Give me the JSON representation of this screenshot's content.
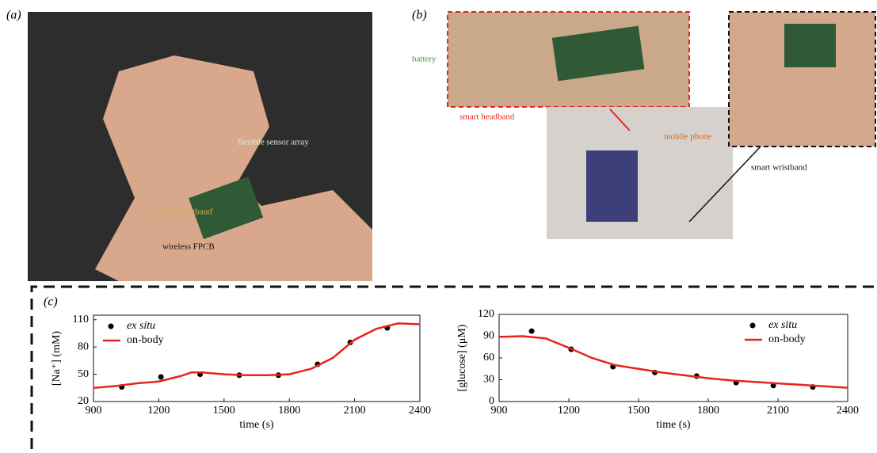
{
  "panels": {
    "a": {
      "label": "(a)",
      "annotations": [
        "flexible sensor array",
        "'smart wristband'",
        "wireless FPCB"
      ]
    },
    "b": {
      "label": "(b)",
      "annotations": [
        "battery",
        "smart headband",
        "mobile phone",
        "smart wristband"
      ]
    },
    "c": {
      "label": "(c)"
    }
  },
  "chart_data": [
    {
      "type": "line",
      "xlabel": "time (s)",
      "ylabel": "[Na⁺] (mM)",
      "xlim": [
        900,
        2400
      ],
      "xticks": [
        900,
        1200,
        1500,
        1800,
        2100,
        2400
      ],
      "ylim": [
        20,
        115
      ],
      "yticks": [
        20,
        50,
        80,
        110
      ],
      "legend": "upper left",
      "series": [
        {
          "name": "ex situ",
          "type": "scatter",
          "color": "#000000",
          "x": [
            1030,
            1210,
            1390,
            1570,
            1750,
            1930,
            2080,
            2250
          ],
          "values": [
            36,
            47,
            50,
            49,
            49,
            61,
            85,
            101
          ]
        },
        {
          "name": "on-body",
          "type": "line",
          "color": "#e8231f",
          "x": [
            900,
            1000,
            1100,
            1200,
            1300,
            1350,
            1400,
            1500,
            1600,
            1700,
            1800,
            1900,
            2000,
            2100,
            2200,
            2300,
            2400
          ],
          "values": [
            35,
            37,
            40,
            42,
            48,
            52,
            52,
            50,
            49,
            49,
            50,
            56,
            68,
            88,
            100,
            106,
            105
          ]
        }
      ]
    },
    {
      "type": "line",
      "xlabel": "time (s)",
      "ylabel": "[glucose] (μM)",
      "xlim": [
        900,
        2400
      ],
      "xticks": [
        900,
        1200,
        1500,
        1800,
        2100,
        2400
      ],
      "ylim": [
        0,
        120
      ],
      "yticks": [
        0,
        30,
        60,
        90,
        120
      ],
      "legend": "upper right",
      "series": [
        {
          "name": "ex situ",
          "type": "scatter",
          "color": "#000000",
          "x": [
            1040,
            1210,
            1390,
            1570,
            1750,
            1920,
            2080,
            2250
          ],
          "values": [
            97,
            72,
            48,
            40,
            35,
            26,
            22,
            20
          ]
        },
        {
          "name": "on-body",
          "type": "line",
          "color": "#e8231f",
          "x": [
            900,
            1000,
            1100,
            1200,
            1300,
            1400,
            1500,
            1600,
            1700,
            1800,
            1900,
            2000,
            2100,
            2200,
            2300,
            2400
          ],
          "values": [
            89,
            90,
            87,
            74,
            60,
            50,
            45,
            40,
            36,
            32,
            29,
            27,
            25,
            23,
            21,
            19
          ]
        }
      ]
    }
  ]
}
